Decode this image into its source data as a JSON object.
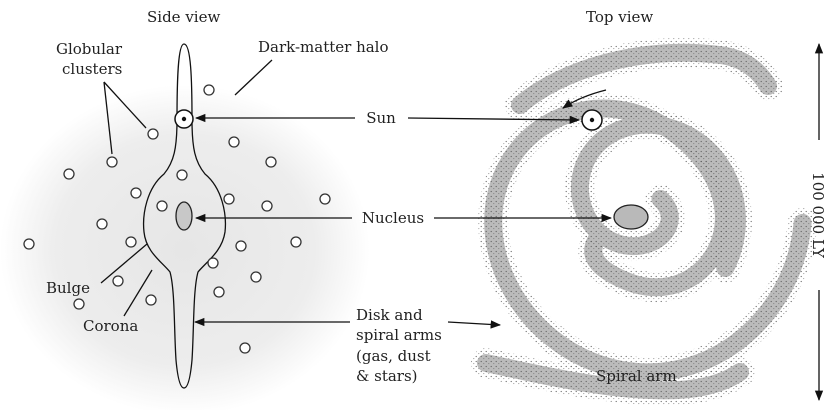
{
  "views": {
    "side": "Side view",
    "top": "Top view"
  },
  "labels": {
    "globular_clusters_line1": "Globular",
    "globular_clusters_line2": "clusters",
    "dark_matter_halo": "Dark-matter halo",
    "sun": "Sun",
    "nucleus": "Nucleus",
    "bulge": "Bulge",
    "corona": "Corona",
    "disk_line1": "Disk and",
    "disk_line2": "spiral arms",
    "disk_line3": "(gas, dust",
    "disk_line4": "& stars)",
    "spiral_arm": "Spiral arm",
    "scale": "100 000 LY"
  }
}
